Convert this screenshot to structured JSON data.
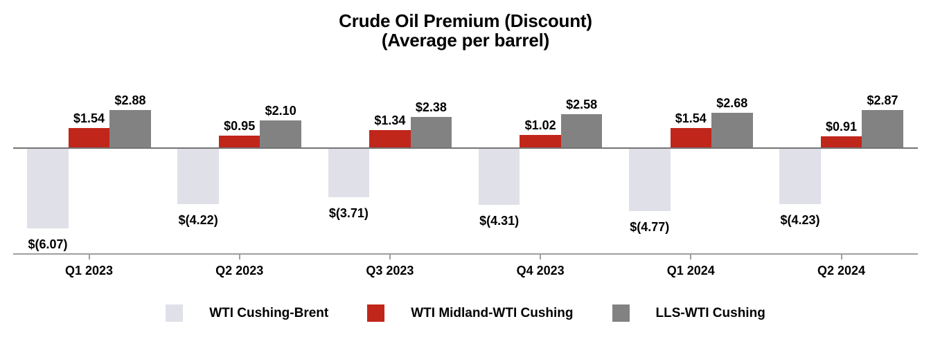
{
  "title": {
    "line1": "Crude Oil Premium (Discount)",
    "line2": "(Average per barrel)"
  },
  "chart_data": {
    "type": "bar",
    "title": "Crude Oil Premium (Discount) (Average per barrel)",
    "categories": [
      "Q1 2023",
      "Q2 2023",
      "Q3 2023",
      "Q4 2023",
      "Q1 2024",
      "Q2 2024"
    ],
    "series": [
      {
        "name": "WTI Cushing-Brent",
        "color": "#E0E1E8",
        "values": [
          -6.07,
          -4.22,
          -3.71,
          -4.31,
          -4.77,
          -4.23
        ],
        "labels": [
          "$(6.07)",
          "$(4.22)",
          "$(3.71)",
          "$(4.31)",
          "$(4.77)",
          "$(4.23)"
        ]
      },
      {
        "name": "WTI Midland-WTI Cushing",
        "color": "#C1261B",
        "values": [
          1.54,
          0.95,
          1.34,
          1.02,
          1.54,
          0.91
        ],
        "labels": [
          "$1.54",
          "$0.95",
          "$1.34",
          "$1.02",
          "$1.54",
          "$0.91"
        ]
      },
      {
        "name": "LLS-WTI Cushing",
        "color": "#828282",
        "values": [
          2.88,
          2.1,
          2.38,
          2.58,
          2.68,
          2.87
        ],
        "labels": [
          "$2.88",
          "$2.10",
          "$2.38",
          "$2.58",
          "$2.68",
          "$2.87"
        ]
      }
    ],
    "ylim": [
      -8,
      4
    ],
    "grid": false,
    "legend_position": "bottom",
    "value_label_format": "dollars, negatives shown in parentheses"
  },
  "colors": {
    "zero_line": "#737373",
    "axis_line": "#9E9E9E",
    "text": "#000000",
    "background": "#FFFFFF"
  }
}
